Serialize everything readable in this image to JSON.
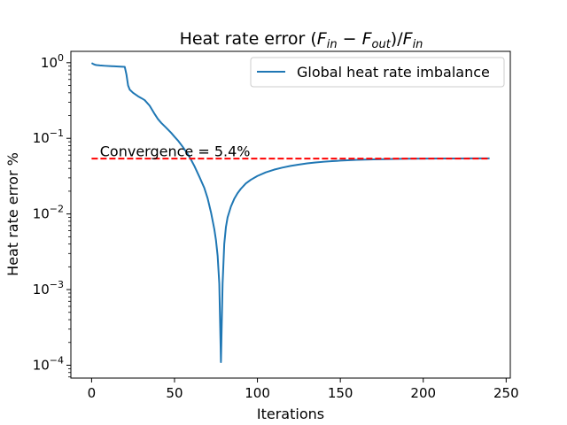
{
  "chart_data": {
    "type": "line",
    "title": "Heat rate error (F_in − F_out)/F_in",
    "xlabel": "Iterations",
    "ylabel": "Heat rate error %",
    "xlim": [
      -12.5,
      252.5
    ],
    "ylim_log10": [
      -4.17,
      0.15
    ],
    "y_scale": "log",
    "x_ticks": [
      0,
      50,
      100,
      150,
      200,
      250
    ],
    "y_ticks": [
      {
        "exp": 0,
        "label": "0"
      },
      {
        "exp": -1,
        "label": "−1"
      },
      {
        "exp": -2,
        "label": "−2"
      },
      {
        "exp": -3,
        "label": "−3"
      },
      {
        "exp": -4,
        "label": "−4"
      }
    ],
    "grid": false,
    "legend_position": "top-right",
    "series": [
      {
        "name": "Global heat rate imbalance",
        "color": "#1f77b4",
        "style": "solid",
        "points": [
          [
            0,
            0.99
          ],
          [
            1,
            0.96
          ],
          [
            2,
            0.94
          ],
          [
            3,
            0.93
          ],
          [
            5,
            0.92
          ],
          [
            8,
            0.91
          ],
          [
            12,
            0.9
          ],
          [
            16,
            0.89
          ],
          [
            20,
            0.88
          ],
          [
            21,
            0.7
          ],
          [
            22,
            0.5
          ],
          [
            23,
            0.44
          ],
          [
            25,
            0.4
          ],
          [
            28,
            0.36
          ],
          [
            30,
            0.34
          ],
          [
            32,
            0.32
          ],
          [
            35,
            0.27
          ],
          [
            38,
            0.21
          ],
          [
            40,
            0.18
          ],
          [
            42,
            0.16
          ],
          [
            45,
            0.138
          ],
          [
            48,
            0.118
          ],
          [
            50,
            0.105
          ],
          [
            52,
            0.094
          ],
          [
            55,
            0.077
          ],
          [
            58,
            0.062
          ],
          [
            60,
            0.052
          ],
          [
            62,
            0.043
          ],
          [
            65,
            0.031
          ],
          [
            68,
            0.022
          ],
          [
            70,
            0.016
          ],
          [
            72,
            0.0105
          ],
          [
            74,
            0.0063
          ],
          [
            75,
            0.0045
          ],
          [
            76,
            0.0028
          ],
          [
            77,
            0.0012
          ],
          [
            78,
            0.00011
          ],
          [
            79,
            0.0012
          ],
          [
            80,
            0.004
          ],
          [
            81,
            0.0067
          ],
          [
            82,
            0.009
          ],
          [
            84,
            0.0125
          ],
          [
            86,
            0.0158
          ],
          [
            88,
            0.0188
          ],
          [
            90,
            0.0215
          ],
          [
            93,
            0.0253
          ],
          [
            96,
            0.0283
          ],
          [
            100,
            0.0318
          ],
          [
            105,
            0.0355
          ],
          [
            110,
            0.0385
          ],
          [
            115,
            0.041
          ],
          [
            120,
            0.0432
          ],
          [
            125,
            0.045
          ],
          [
            130,
            0.0466
          ],
          [
            135,
            0.0479
          ],
          [
            140,
            0.049
          ],
          [
            145,
            0.0499
          ],
          [
            150,
            0.0507
          ],
          [
            160,
            0.0519
          ],
          [
            170,
            0.0527
          ],
          [
            180,
            0.0533
          ],
          [
            190,
            0.0537
          ],
          [
            200,
            0.054
          ],
          [
            210,
            0.0541
          ],
          [
            220,
            0.0542
          ],
          [
            230,
            0.0543
          ],
          [
            240,
            0.0543
          ]
        ]
      },
      {
        "name": "",
        "color": "#ff0000",
        "style": "dashed",
        "points": [
          [
            0,
            0.054
          ],
          [
            240,
            0.054
          ]
        ]
      }
    ],
    "annotations": [
      {
        "text": "Convergence = 5.4%",
        "x": 5,
        "y": 0.058
      }
    ]
  }
}
